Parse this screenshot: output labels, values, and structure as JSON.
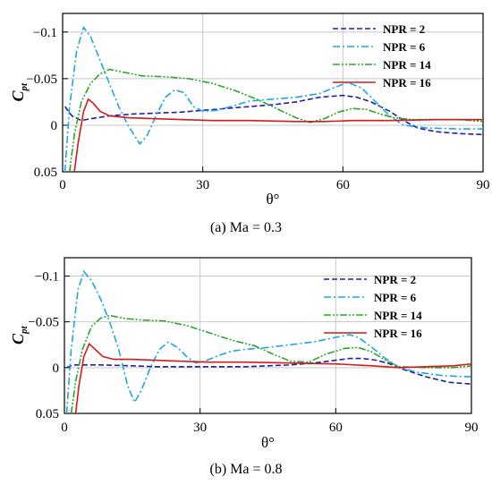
{
  "colors": {
    "NPR = 2": "#1f1fa8",
    "NPR = 6": "#1aa7e6",
    "NPR = 14": "#2ba52b",
    "NPR = 16": "#d61a1a"
  },
  "chart_data": [
    {
      "type": "line",
      "caption": "(a) Ma = 0.3",
      "xlabel": "θ°",
      "ylabel": "C",
      "ylabel_sub": "pt",
      "xlim": [
        0,
        90
      ],
      "ylim": [
        0.05,
        -0.12
      ],
      "xticks": [
        "0",
        "30",
        "60",
        "90"
      ],
      "yticks": [
        "-0.1",
        "-0.05",
        "0",
        "0.05"
      ],
      "grid": true,
      "legend": "top-right",
      "series": [
        {
          "name": "NPR = 2",
          "style": "dash",
          "points": [
            [
              0.5,
              -0.02
            ],
            [
              2,
              -0.01
            ],
            [
              4,
              -0.005
            ],
            [
              6,
              -0.007
            ],
            [
              10,
              -0.01
            ],
            [
              15,
              -0.012
            ],
            [
              20,
              -0.013
            ],
            [
              25,
              -0.014
            ],
            [
              30,
              -0.016
            ],
            [
              35,
              -0.018
            ],
            [
              40,
              -0.02
            ],
            [
              45,
              -0.022
            ],
            [
              50,
              -0.025
            ],
            [
              55,
              -0.03
            ],
            [
              60,
              -0.032
            ],
            [
              63,
              -0.03
            ],
            [
              66,
              -0.025
            ],
            [
              70,
              -0.015
            ],
            [
              73,
              -0.005
            ],
            [
              76,
              0.003
            ],
            [
              80,
              0.007
            ],
            [
              85,
              0.009
            ],
            [
              90,
              0.01
            ]
          ]
        },
        {
          "name": "NPR = 6",
          "style": "dashdot",
          "points": [
            [
              0.5,
              0.05
            ],
            [
              1.5,
              -0.02
            ],
            [
              3,
              -0.08
            ],
            [
              4.5,
              -0.105
            ],
            [
              6,
              -0.095
            ],
            [
              8,
              -0.07
            ],
            [
              10,
              -0.045
            ],
            [
              12,
              -0.02
            ],
            [
              14,
              0.0
            ],
            [
              16.5,
              0.02
            ],
            [
              18,
              0.012
            ],
            [
              20,
              -0.01
            ],
            [
              22,
              -0.03
            ],
            [
              24,
              -0.038
            ],
            [
              26,
              -0.035
            ],
            [
              28,
              -0.02
            ],
            [
              30,
              -0.015
            ],
            [
              33,
              -0.016
            ],
            [
              36,
              -0.02
            ],
            [
              40,
              -0.026
            ],
            [
              45,
              -0.028
            ],
            [
              50,
              -0.03
            ],
            [
              55,
              -0.034
            ],
            [
              58,
              -0.04
            ],
            [
              61,
              -0.046
            ],
            [
              64,
              -0.04
            ],
            [
              67,
              -0.025
            ],
            [
              70,
              -0.01
            ],
            [
              73,
              0.0
            ],
            [
              78,
              0.003
            ],
            [
              85,
              0.004
            ],
            [
              90,
              0.004
            ]
          ]
        },
        {
          "name": "NPR = 14",
          "style": "dashdotdot",
          "points": [
            [
              1.5,
              0.05
            ],
            [
              2.5,
              0.01
            ],
            [
              4,
              -0.025
            ],
            [
              6,
              -0.045
            ],
            [
              8,
              -0.055
            ],
            [
              10,
              -0.06
            ],
            [
              13,
              -0.057
            ],
            [
              17,
              -0.053
            ],
            [
              22,
              -0.052
            ],
            [
              27,
              -0.05
            ],
            [
              32,
              -0.045
            ],
            [
              37,
              -0.037
            ],
            [
              42,
              -0.027
            ],
            [
              47,
              -0.015
            ],
            [
              50,
              -0.008
            ],
            [
              53,
              -0.003
            ],
            [
              56,
              -0.007
            ],
            [
              59,
              -0.014
            ],
            [
              62,
              -0.018
            ],
            [
              65,
              -0.017
            ],
            [
              68,
              -0.012
            ],
            [
              71,
              -0.008
            ],
            [
              75,
              -0.006
            ],
            [
              80,
              -0.006
            ],
            [
              85,
              -0.006
            ],
            [
              90,
              -0.004
            ]
          ]
        },
        {
          "name": "NPR = 16",
          "style": "solid",
          "points": [
            [
              2.5,
              0.05
            ],
            [
              3.3,
              0.02
            ],
            [
              4.5,
              -0.015
            ],
            [
              5.5,
              -0.028
            ],
            [
              6.5,
              -0.024
            ],
            [
              8,
              -0.015
            ],
            [
              10,
              -0.01
            ],
            [
              14,
              -0.008
            ],
            [
              20,
              -0.007
            ],
            [
              26,
              -0.006
            ],
            [
              32,
              -0.005
            ],
            [
              40,
              -0.005
            ],
            [
              50,
              -0.004
            ],
            [
              56,
              -0.004
            ],
            [
              62,
              -0.005
            ],
            [
              70,
              -0.005
            ],
            [
              80,
              -0.006
            ],
            [
              90,
              -0.006
            ]
          ]
        }
      ]
    },
    {
      "type": "line",
      "caption": "(b) Ma = 0.8",
      "xlabel": "θ°",
      "ylabel": "C",
      "ylabel_sub": "pt",
      "xlim": [
        0,
        90
      ],
      "ylim": [
        0.05,
        -0.12
      ],
      "xticks": [
        "0",
        "30",
        "60",
        "90"
      ],
      "yticks": [
        "-0.1",
        "-0.05",
        "0",
        "0.05"
      ],
      "grid": true,
      "legend": "top-right",
      "series": [
        {
          "name": "NPR = 2",
          "style": "dash",
          "points": [
            [
              0.5,
              0.0
            ],
            [
              2,
              -0.003
            ],
            [
              4,
              -0.003
            ],
            [
              8,
              -0.003
            ],
            [
              15,
              -0.002
            ],
            [
              20,
              -0.001
            ],
            [
              25,
              -0.001
            ],
            [
              30,
              -0.001
            ],
            [
              35,
              -0.001
            ],
            [
              40,
              -0.001
            ],
            [
              45,
              -0.002
            ],
            [
              50,
              -0.003
            ],
            [
              55,
              -0.005
            ],
            [
              60,
              -0.008
            ],
            [
              63,
              -0.01
            ],
            [
              66,
              -0.01
            ],
            [
              69,
              -0.008
            ],
            [
              72,
              -0.004
            ],
            [
              75,
              0.002
            ],
            [
              80,
              0.01
            ],
            [
              85,
              0.016
            ],
            [
              90,
              0.018
            ]
          ]
        },
        {
          "name": "NPR = 6",
          "style": "dashdot",
          "points": [
            [
              0.5,
              0.05
            ],
            [
              1.5,
              -0.02
            ],
            [
              3,
              -0.085
            ],
            [
              4.3,
              -0.105
            ],
            [
              6,
              -0.095
            ],
            [
              8,
              -0.075
            ],
            [
              10,
              -0.05
            ],
            [
              12,
              -0.02
            ],
            [
              14,
              0.02
            ],
            [
              15.5,
              0.038
            ],
            [
              17,
              0.025
            ],
            [
              19,
              0.0
            ],
            [
              21,
              -0.02
            ],
            [
              23,
              -0.028
            ],
            [
              25,
              -0.022
            ],
            [
              27,
              -0.012
            ],
            [
              29,
              -0.005
            ],
            [
              31,
              -0.007
            ],
            [
              34,
              -0.013
            ],
            [
              37,
              -0.018
            ],
            [
              40,
              -0.02
            ],
            [
              45,
              -0.022
            ],
            [
              50,
              -0.025
            ],
            [
              55,
              -0.028
            ],
            [
              60,
              -0.033
            ],
            [
              63,
              -0.036
            ],
            [
              65,
              -0.033
            ],
            [
              68,
              -0.022
            ],
            [
              71,
              -0.01
            ],
            [
              74,
              0.0
            ],
            [
              78,
              0.005
            ],
            [
              84,
              0.009
            ],
            [
              90,
              0.01
            ]
          ]
        },
        {
          "name": "NPR = 14",
          "style": "dashdotdot",
          "points": [
            [
              1.5,
              0.05
            ],
            [
              2.5,
              0.015
            ],
            [
              4,
              -0.02
            ],
            [
              6,
              -0.045
            ],
            [
              8,
              -0.054
            ],
            [
              10,
              -0.057
            ],
            [
              13,
              -0.054
            ],
            [
              17,
              -0.052
            ],
            [
              22,
              -0.051
            ],
            [
              27,
              -0.046
            ],
            [
              32,
              -0.038
            ],
            [
              37,
              -0.03
            ],
            [
              42,
              -0.024
            ],
            [
              46,
              -0.015
            ],
            [
              50,
              -0.007
            ],
            [
              54,
              -0.006
            ],
            [
              58,
              -0.015
            ],
            [
              62,
              -0.021
            ],
            [
              65,
              -0.022
            ],
            [
              68,
              -0.017
            ],
            [
              71,
              -0.008
            ],
            [
              74,
              -0.001
            ],
            [
              80,
              0.0
            ],
            [
              86,
              0.0
            ],
            [
              90,
              -0.002
            ]
          ]
        },
        {
          "name": "NPR = 16",
          "style": "solid",
          "points": [
            [
              2.5,
              0.05
            ],
            [
              3.2,
              0.02
            ],
            [
              4.3,
              -0.012
            ],
            [
              5.5,
              -0.026
            ],
            [
              6.8,
              -0.02
            ],
            [
              8.5,
              -0.012
            ],
            [
              11,
              -0.009
            ],
            [
              15,
              -0.009
            ],
            [
              20,
              -0.008
            ],
            [
              26,
              -0.007
            ],
            [
              32,
              -0.006
            ],
            [
              40,
              -0.006
            ],
            [
              50,
              -0.005
            ],
            [
              60,
              -0.004
            ],
            [
              68,
              -0.002
            ],
            [
              74,
              0.0
            ],
            [
              80,
              -0.001
            ],
            [
              86,
              -0.002
            ],
            [
              90,
              -0.004
            ]
          ]
        }
      ]
    }
  ]
}
